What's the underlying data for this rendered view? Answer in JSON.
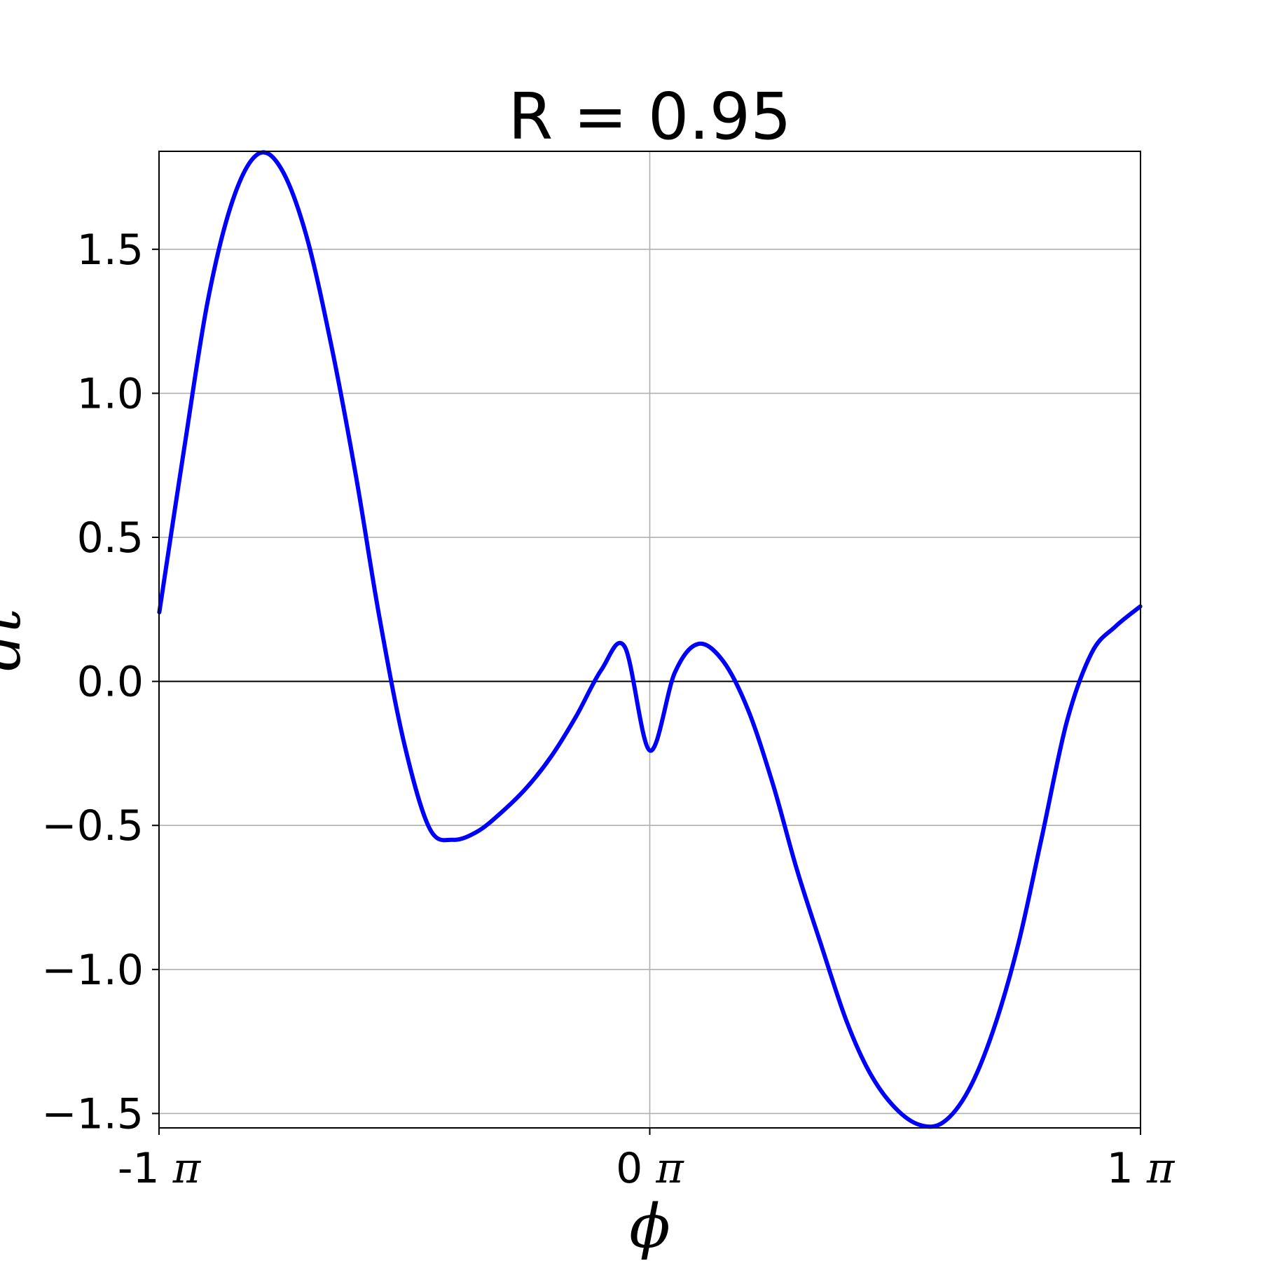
{
  "chart_data": {
    "type": "line",
    "title": "R = 0.95",
    "xlabel": "ϕ",
    "ylabel": "dt",
    "xlim": [
      -3.14159,
      3.14159
    ],
    "ylim": [
      -1.55,
      1.84
    ],
    "grid": true,
    "zero_line": true,
    "x_ticks": [
      {
        "value": -3.14159,
        "label": "-1",
        "unit": "π"
      },
      {
        "value": 0,
        "label": "0",
        "unit": "π"
      },
      {
        "value": 3.14159,
        "label": "1",
        "unit": "π"
      }
    ],
    "y_ticks": [
      {
        "value": -1.5,
        "label": "−1.5"
      },
      {
        "value": -1.0,
        "label": "−1.0"
      },
      {
        "value": -0.5,
        "label": "−0.5"
      },
      {
        "value": 0.0,
        "label": "0.0"
      },
      {
        "value": 0.5,
        "label": "0.5"
      },
      {
        "value": 1.0,
        "label": "1.0"
      },
      {
        "value": 1.5,
        "label": "1.5"
      }
    ],
    "series": [
      {
        "color": "#0000ff",
        "x": [
          -3.14,
          -2.98,
          -2.83,
          -2.67,
          -2.51,
          -2.36,
          -2.2,
          -2.04,
          -1.88,
          -1.73,
          -1.57,
          -1.41,
          -1.26,
          -1.1,
          -0.94,
          -0.79,
          -0.63,
          -0.47,
          -0.31,
          -0.16,
          0.0,
          0.16,
          0.31,
          0.47,
          0.63,
          0.79,
          0.94,
          1.1,
          1.26,
          1.41,
          1.57,
          1.73,
          1.88,
          2.04,
          2.2,
          2.36,
          2.51,
          2.67,
          2.83,
          2.98,
          3.14
        ],
        "y": [
          0.24,
          0.81,
          1.32,
          1.67,
          1.83,
          1.78,
          1.55,
          1.17,
          0.71,
          0.22,
          -0.22,
          -0.51,
          -0.55,
          -0.52,
          -0.45,
          -0.37,
          -0.26,
          -0.12,
          0.04,
          0.12,
          -0.24,
          0.03,
          0.13,
          0.07,
          -0.1,
          -0.36,
          -0.65,
          -0.92,
          -1.18,
          -1.36,
          -1.48,
          -1.54,
          -1.53,
          -1.42,
          -1.21,
          -0.91,
          -0.54,
          -0.14,
          0.1,
          0.19,
          0.26
        ]
      }
    ]
  }
}
